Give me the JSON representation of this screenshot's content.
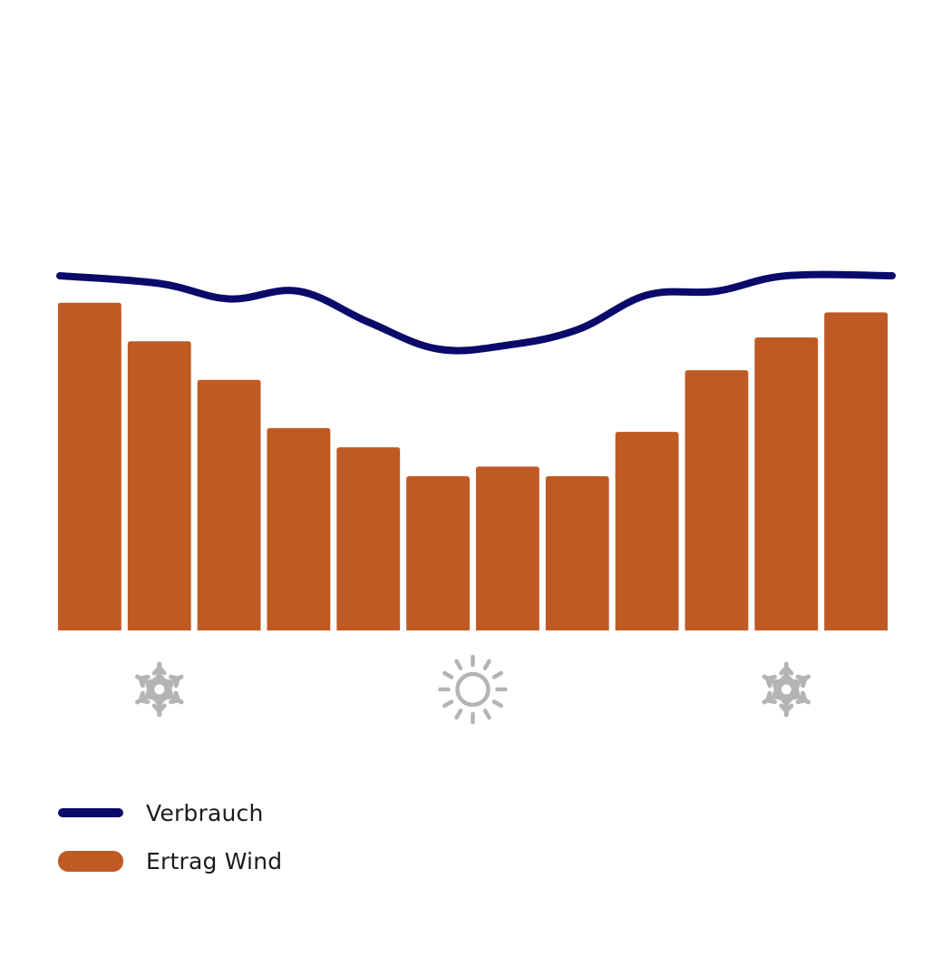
{
  "chart_data": {
    "type": "bar",
    "categories": [
      "",
      "",
      "",
      "",
      "",
      "",
      "",
      "",
      "",
      "",
      "",
      ""
    ],
    "series": [
      {
        "name": "Ertrag Wind",
        "kind": "bar",
        "values": [
          85,
          75,
          65,
          52.5,
          47.5,
          40,
          42.5,
          40,
          51.5,
          67.5,
          76,
          82.5
        ]
      },
      {
        "name": "Verbrauch",
        "kind": "line",
        "values": [
          92,
          90,
          86,
          88,
          80,
          73,
          74,
          78,
          87,
          88,
          92,
          92
        ]
      }
    ],
    "ylim": [
      0,
      100
    ],
    "grid": false,
    "legend_position": "bottom-left",
    "season_icons": [
      {
        "icon": "snowflake-icon",
        "month_index": 1
      },
      {
        "icon": "sun-icon",
        "month_index": 5.5
      },
      {
        "icon": "snowflake-icon",
        "month_index": 10
      }
    ],
    "colors": {
      "bar": "#c05a24",
      "line": "#0a0a6b",
      "icon": "#b4b4b4"
    }
  },
  "legend": {
    "items": [
      {
        "label": "Verbrauch",
        "swatch": "line",
        "color": "#0a0a6b"
      },
      {
        "label": "Ertrag Wind",
        "swatch": "bar",
        "color": "#c05a24"
      }
    ]
  }
}
